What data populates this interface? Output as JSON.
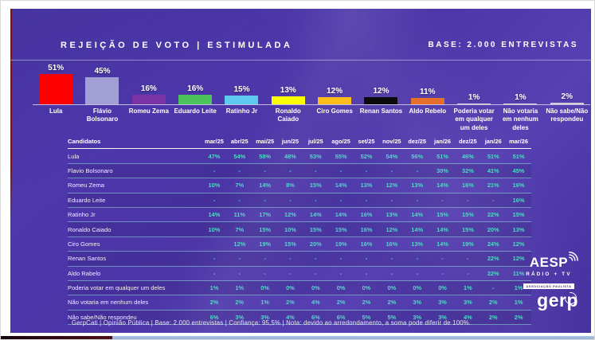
{
  "header": {
    "title": "REJEIÇÃO DE VOTO | ESTIMULADA",
    "base": "BASE: 2.000 ENTREVISTAS"
  },
  "chart_data": {
    "type": "bar",
    "title": "Rejeição de voto estimulada",
    "unit": "%",
    "categories": [
      "Lula",
      "Flávio Bolsonaro",
      "Romeu Zema",
      "Eduardo Leite",
      "Ratinho Jr",
      "Ronaldo Caiado",
      "Ciro Gomes",
      "Renan Santos",
      "Aldo Rebelo",
      "Poderia votar em qualquer um deles",
      "Não votaria em nenhum deles",
      "Não sabe/Não respondeu"
    ],
    "values": [
      51,
      45,
      16,
      16,
      15,
      13,
      12,
      12,
      11,
      1,
      1,
      2
    ],
    "colors": [
      "#fe0000",
      "#a29ed6",
      "#7c33a6",
      "#4dc35e",
      "#5ec9ef",
      "#fdff00",
      "#fcbd1b",
      "#0a0a0a",
      "#e56f2b",
      "#d9d9d9",
      "#d9d9d9",
      "#cfcfd6"
    ],
    "ylim": [
      0,
      55
    ],
    "grid": false,
    "legend": false
  },
  "table": {
    "name_header": "Candidatos",
    "columns": [
      "mar/25",
      "abr/25",
      "mai/25",
      "jun/25",
      "jul/25",
      "ago/25",
      "set/25",
      "nov/25",
      "dez/25",
      "jan/26",
      "dez/25",
      "jan/26",
      "mar/26"
    ],
    "rows": [
      {
        "name": "Lula",
        "values": [
          "47%",
          "54%",
          "58%",
          "48%",
          "53%",
          "55%",
          "52%",
          "54%",
          "56%",
          "51%",
          "46%",
          "51%",
          "51%"
        ]
      },
      {
        "name": "Flavio Bolsonaro",
        "values": [
          "-",
          "-",
          "-",
          "-",
          "-",
          "-",
          "-",
          "-",
          "-",
          "30%",
          "32%",
          "41%",
          "45%"
        ]
      },
      {
        "name": "Romeu Zema",
        "values": [
          "10%",
          "7%",
          "14%",
          "8%",
          "15%",
          "14%",
          "13%",
          "12%",
          "13%",
          "14%",
          "16%",
          "21%",
          "16%"
        ]
      },
      {
        "name": "Eduardo Leite",
        "values": [
          "-",
          "-",
          "-",
          "-",
          "-",
          "-",
          "-",
          "-",
          "-",
          "-",
          "-",
          "-",
          "16%"
        ]
      },
      {
        "name": "Ratinho Jr",
        "values": [
          "14%",
          "11%",
          "17%",
          "12%",
          "14%",
          "14%",
          "16%",
          "13%",
          "14%",
          "15%",
          "15%",
          "22%",
          "15%"
        ]
      },
      {
        "name": "Ronaldo Caiado",
        "values": [
          "10%",
          "7%",
          "15%",
          "10%",
          "15%",
          "15%",
          "16%",
          "12%",
          "14%",
          "14%",
          "15%",
          "20%",
          "13%"
        ]
      },
      {
        "name": "Ciro Gomes",
        "values": [
          "",
          "12%",
          "19%",
          "15%",
          "20%",
          "19%",
          "16%",
          "16%",
          "13%",
          "14%",
          "19%",
          "24%",
          "12%"
        ]
      },
      {
        "name": "Renan Santos",
        "values": [
          "-",
          "-",
          "-",
          "-",
          "-",
          "-",
          "-",
          "-",
          "-",
          "-",
          "-",
          "22%",
          "12%"
        ]
      },
      {
        "name": "Aldo Rabelo",
        "values": [
          "-",
          "-",
          "-",
          "-",
          "-",
          "-",
          "-",
          "-",
          "-",
          "-",
          "-",
          "22%",
          "11%"
        ]
      },
      {
        "name": "Poderia votar em qualquer um deles",
        "values": [
          "1%",
          "1%",
          "0%",
          "0%",
          "0%",
          "0%",
          "0%",
          "0%",
          "0%",
          "0%",
          "1%",
          "-",
          "1%"
        ]
      },
      {
        "name": "Não votaria em nenhum deles",
        "values": [
          "2%",
          "2%",
          "1%",
          "2%",
          "4%",
          "2%",
          "2%",
          "2%",
          "3%",
          "3%",
          "3%",
          "2%",
          "1%"
        ]
      },
      {
        "name": "Não sabe/Não respondeu",
        "values": [
          "6%",
          "3%",
          "3%",
          "4%",
          "6%",
          "6%",
          "5%",
          "5%",
          "3%",
          "3%",
          "4%",
          "2%",
          "2%"
        ]
      }
    ]
  },
  "footer": {
    "text": "GerpCati | Opinião Pública | Base: 2.000 entrevistas | Confiança: 95,5% | Nota: devido ao arredondamento, a soma pode diferir de 100%."
  },
  "logos": {
    "aesp_name": "AESP",
    "aesp_sub": "RÁDIO + TV",
    "aesp_band": "ASSOCIAÇÃO PAULISTA",
    "gerp_pre": "ger",
    "gerp_p": "p"
  },
  "colors": {
    "accent_teal": "#4fdac4",
    "slide_bg": "#4b35a7"
  }
}
